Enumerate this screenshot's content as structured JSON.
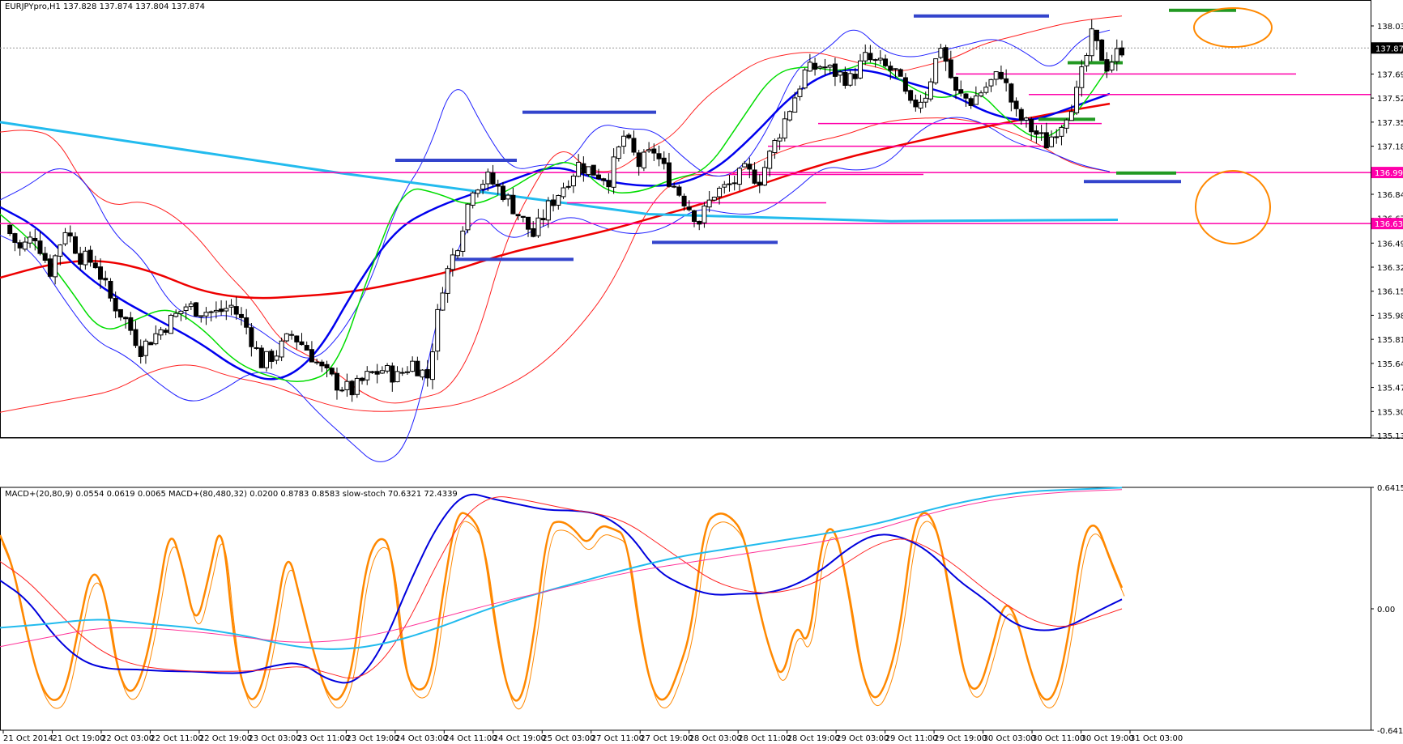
{
  "main_panel": {
    "title": "EURJPYpro,H1  137.828 137.874 137.804 137.874",
    "current_price_label": "137.874",
    "level_labels": [
      "136.994",
      "136.633"
    ],
    "price_ticks": [
      "138.030",
      "137.860",
      "137.690",
      "137.520",
      "137.350",
      "137.180",
      "136.840",
      "136.670",
      "136.495",
      "136.325",
      "136.155",
      "135.985",
      "135.815",
      "135.645",
      "135.475",
      "135.305",
      "135.135"
    ]
  },
  "indicator_panel": {
    "title": "MACD+(20,80,9) 0.0554 0.0619 0.0065  MACD+(80,480,32) 0.0200 0.8783 0.8583  slow-stoch 70.6321 72.4339",
    "ticks": [
      "0.6415",
      "0.00",
      "-0.6415"
    ]
  },
  "time_labels": [
    "21 Oct 2014",
    "21 Oct 19:00",
    "22 Oct 03:00",
    "22 Oct 11:00",
    "22 Oct 19:00",
    "23 Oct 03:00",
    "23 Oct 11:00",
    "23 Oct 19:00",
    "24 Oct 03:00",
    "24 Oct 11:00",
    "24 Oct 19:00",
    "25 Oct 03:00",
    "27 Oct 11:00",
    "27 Oct 19:00",
    "28 Oct 03:00",
    "28 Oct 11:00",
    "28 Oct 19:00",
    "29 Oct 03:00",
    "29 Oct 11:00",
    "29 Oct 19:00",
    "30 Oct 03:00",
    "30 Oct 11:00",
    "30 Oct 19:00",
    "31 Oct 03:00"
  ],
  "colors": {
    "bollinger": "#2020ff",
    "bollinger_wide": "#ff2020",
    "ma_fast": "#00dd00",
    "ma_mid": "#0000ee",
    "ma_slow": "#ee0000",
    "trendline": "#22bbee",
    "level_line": "#ff00aa",
    "resistance_marker": "#3344cc",
    "support_marker": "#229922",
    "highlight": "#ff8800",
    "stoch": "#ff8800",
    "macd_fast": "#0000dd",
    "macd_fast_signal": "#ff2020",
    "macd_slow": "#22bbee",
    "macd_slow_signal": "#ff3399"
  },
  "chart_data": {
    "type": "candlestick",
    "title": "EURJPYpro,H1",
    "symbol": "EURJPYpro",
    "timeframe": "H1",
    "last_bar": {
      "open": 137.828,
      "high": 137.874,
      "low": 137.804,
      "close": 137.874
    },
    "y_range": [
      135.135,
      138.12
    ],
    "x_labels": [
      "21 Oct 2014",
      "21 Oct 19:00",
      "22 Oct 03:00",
      "22 Oct 11:00",
      "22 Oct 19:00",
      "23 Oct 03:00",
      "23 Oct 11:00",
      "23 Oct 19:00",
      "24 Oct 03:00",
      "24 Oct 11:00",
      "24 Oct 19:00",
      "25 Oct 03:00",
      "27 Oct 11:00",
      "27 Oct 19:00",
      "28 Oct 03:00",
      "28 Oct 11:00",
      "28 Oct 19:00",
      "29 Oct 03:00",
      "29 Oct 11:00",
      "29 Oct 19:00",
      "30 Oct 03:00",
      "30 Oct 11:00",
      "30 Oct 19:00",
      "31 Oct 03:00"
    ],
    "close_path": [
      136.62,
      136.45,
      136.55,
      136.3,
      136.6,
      136.4,
      136.35,
      136.1,
      135.95,
      135.75,
      135.85,
      135.95,
      136.05,
      136.02,
      136.0,
      136.05,
      135.9,
      135.65,
      135.72,
      135.85,
      135.75,
      135.6,
      135.5,
      135.45,
      135.55,
      135.6,
      135.55,
      135.65,
      135.55,
      136.2,
      136.5,
      136.9,
      136.95,
      136.85,
      136.7,
      136.55,
      136.75,
      136.9,
      137.05,
      137.0,
      136.95,
      137.25,
      137.05,
      137.15,
      136.95,
      136.8,
      136.65,
      136.85,
      136.9,
      137.0,
      136.95,
      137.2,
      137.45,
      137.7,
      137.75,
      137.7,
      137.65,
      137.8,
      137.75,
      137.7,
      137.45,
      137.55,
      137.9,
      137.55,
      137.5,
      137.6,
      137.7,
      137.4,
      137.3,
      137.2,
      137.35,
      137.55,
      137.95,
      137.75,
      137.874
    ],
    "horizontal_levels": [
      136.994,
      136.633,
      137.69,
      137.545,
      137.34,
      137.18,
      136.78
    ],
    "stoch_range": [
      0,
      100
    ],
    "macd_range": [
      -0.6415,
      0.6415
    ]
  }
}
